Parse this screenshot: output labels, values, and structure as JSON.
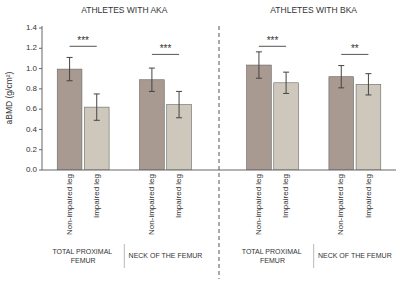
{
  "chart_data": {
    "type": "bar",
    "y_label": "aBMD (g/cm²)",
    "section_labels": [
      "ATHLETES WITH AKA",
      "ATHLETES WITH BKA"
    ],
    "categories": [
      "TOTAL PROXIMAL FEMUR",
      "NECK OF THE FEMUR",
      "TOTAL PROXIMAL FEMUR",
      "NECK OF THE FEMUR"
    ],
    "series": [
      {
        "name": "Non-impaired leg",
        "color": "#a89a90",
        "values": [
          0.995,
          0.89,
          1.035,
          0.92
        ],
        "errors": [
          0.115,
          0.115,
          0.13,
          0.11
        ]
      },
      {
        "name": "Impaired leg",
        "color": "#cec8bc",
        "values": [
          0.62,
          0.645,
          0.86,
          0.845
        ],
        "errors": [
          0.13,
          0.13,
          0.105,
          0.105
        ]
      }
    ],
    "significance": [
      {
        "label": "***",
        "y": 1.22
      },
      {
        "label": "***",
        "y": 1.14
      },
      {
        "label": "***",
        "y": 1.22
      },
      {
        "label": "**",
        "y": 1.14
      }
    ],
    "ylim": [
      0.0,
      1.42
    ],
    "yticks": [
      {
        "value": 0.0,
        "label": "0.0"
      },
      0.2,
      0.4,
      0.6,
      0.8,
      {
        "value": 1.0,
        "label": "1.0"
      },
      1.2,
      1.4
    ],
    "grid": false
  }
}
